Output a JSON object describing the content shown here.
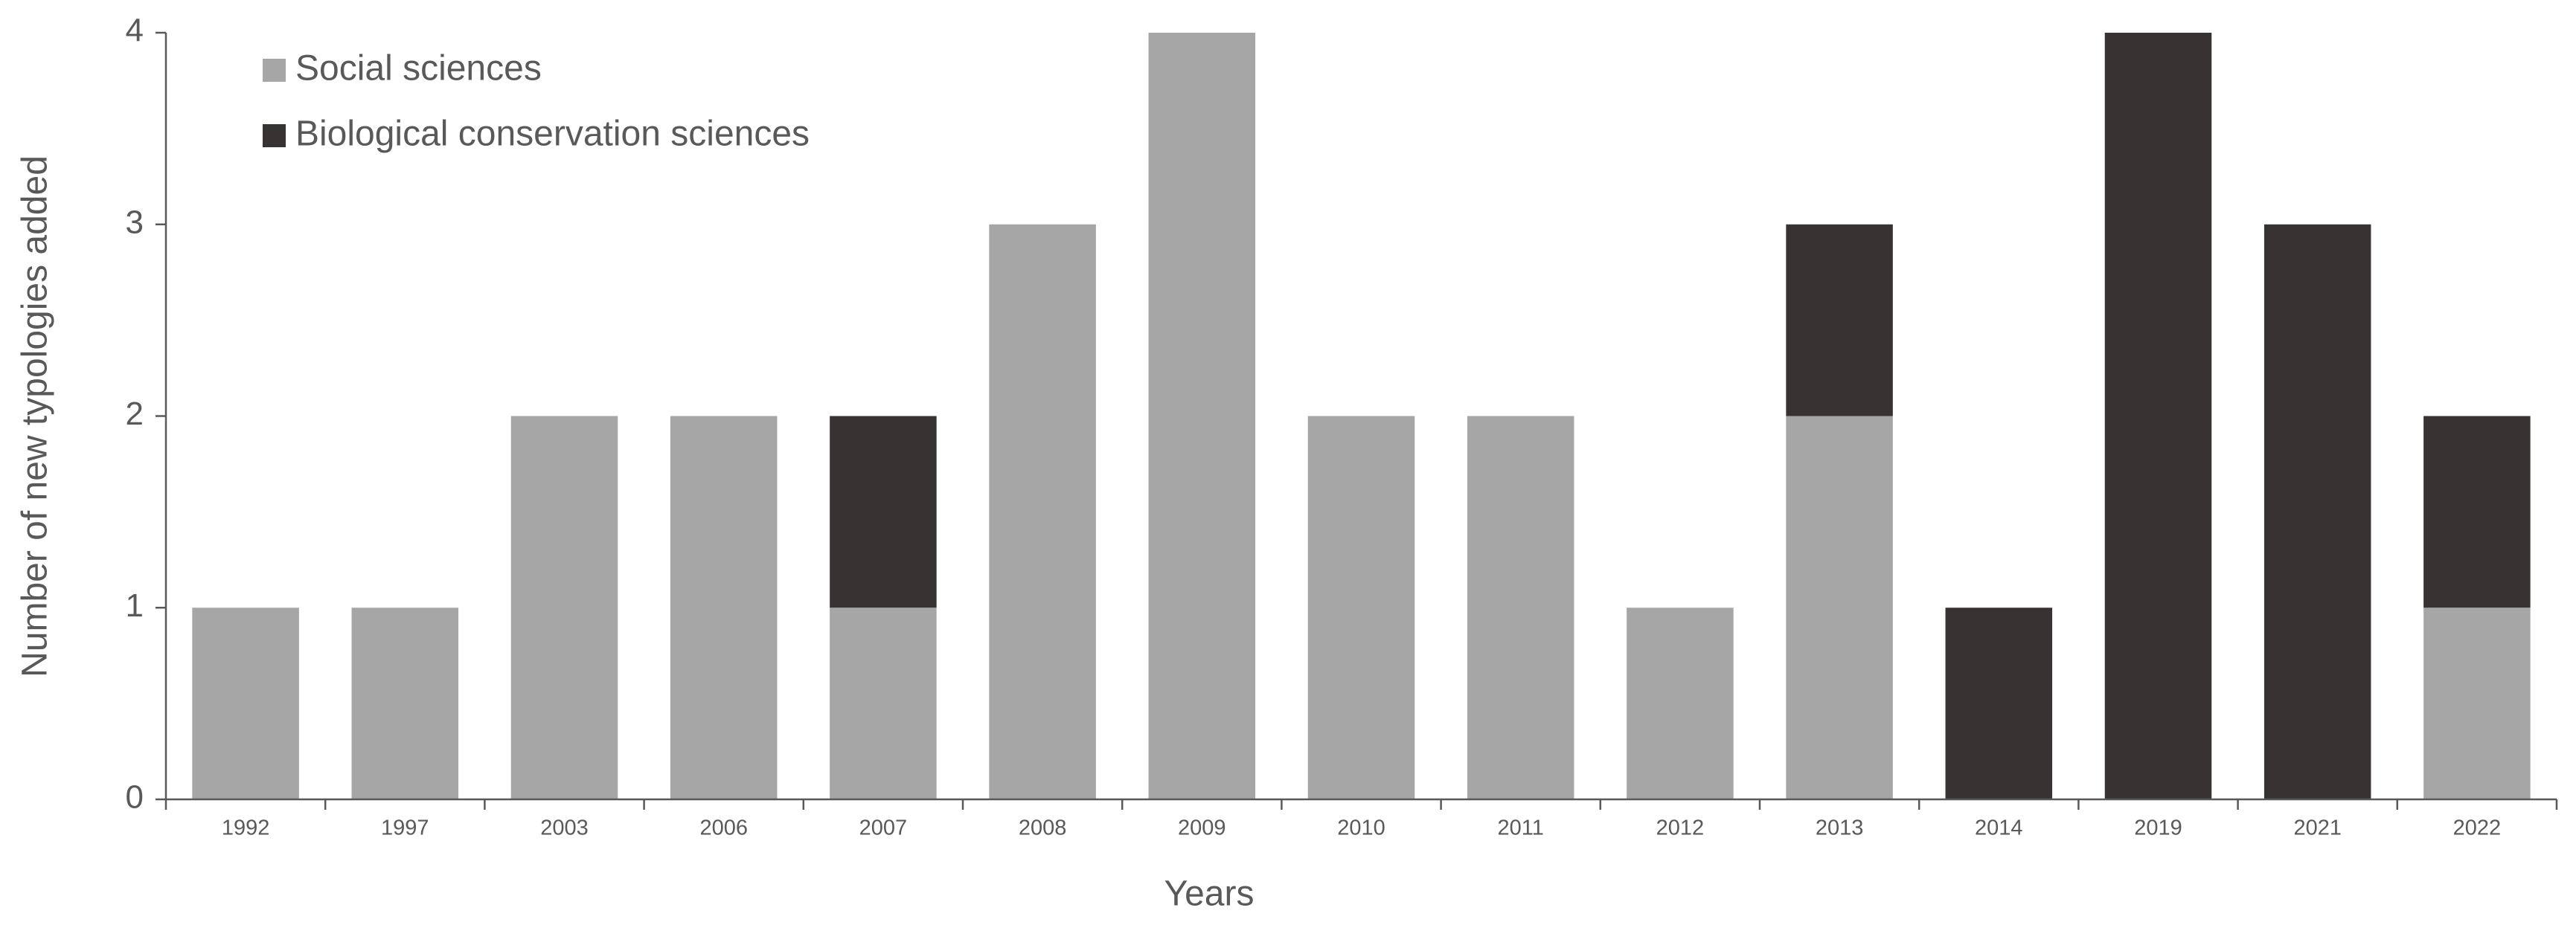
{
  "chart_data": {
    "type": "stacked_bar",
    "x_label": "Years",
    "y_label": "Number of new typologies added",
    "categories": [
      "1992",
      "1997",
      "2003",
      "2006",
      "2007",
      "2008",
      "2009",
      "2010",
      "2011",
      "2012",
      "2013",
      "2014",
      "2019",
      "2021",
      "2022"
    ],
    "series": [
      {
        "name": "Social sciences",
        "color": "#a6a6a6",
        "values": [
          1,
          1,
          2,
          2,
          1,
          3,
          4,
          2,
          2,
          1,
          2,
          0,
          0,
          0,
          1
        ]
      },
      {
        "name": "Biological conservation sciences",
        "color": "#383333",
        "values": [
          0,
          0,
          0,
          0,
          1,
          0,
          0,
          0,
          0,
          0,
          1,
          1,
          4,
          3,
          1
        ]
      }
    ],
    "ylim": [
      0,
      4
    ],
    "yticks": [
      0,
      1,
      2,
      3,
      4
    ],
    "grid": false,
    "legend": "upper left"
  }
}
